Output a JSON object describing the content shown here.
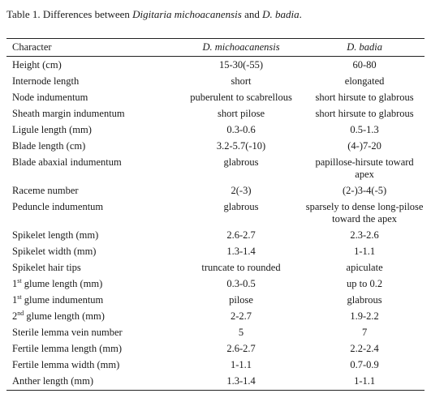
{
  "caption": {
    "prefix": "Table 1. Differences between ",
    "species1": "Digitaria michoacanensis",
    "middle": " and ",
    "species2": "D. badia",
    "suffix": "."
  },
  "headers": [
    "Character",
    "D. michoacanensis",
    "D. badia"
  ],
  "rows": [
    {
      "character": "Height (cm)",
      "sup": "",
      "rest": "",
      "michoacanensis": "15-30(-55)",
      "badia": "60-80"
    },
    {
      "character": "Internode length",
      "sup": "",
      "rest": "",
      "michoacanensis": "short",
      "badia": "elongated"
    },
    {
      "character": "Node indumentum",
      "sup": "",
      "rest": "",
      "michoacanensis": "puberulent to scabrellous",
      "badia": "short hirsute to glabrous"
    },
    {
      "character": "Sheath margin indumentum",
      "sup": "",
      "rest": "",
      "michoacanensis": "short pilose",
      "badia": "short hirsute to glabrous"
    },
    {
      "character": "Ligule length (mm)",
      "sup": "",
      "rest": "",
      "michoacanensis": "0.3-0.6",
      "badia": "0.5-1.3"
    },
    {
      "character": "Blade length (cm)",
      "sup": "",
      "rest": "",
      "michoacanensis": "3.2-5.7(-10)",
      "badia": "(4-)7-20"
    },
    {
      "character": "Blade abaxial indumentum",
      "sup": "",
      "rest": "",
      "michoacanensis": "glabrous",
      "badia": "papillose-hirsute toward apex"
    },
    {
      "character": "Raceme number",
      "sup": "",
      "rest": "",
      "michoacanensis": "2(-3)",
      "badia": "(2-)3-4(-5)"
    },
    {
      "character": "Peduncle indumentum",
      "sup": "",
      "rest": "",
      "michoacanensis": "glabrous",
      "badia": "sparsely to dense long-pilose toward the apex"
    },
    {
      "character": "Spikelet length (mm)",
      "sup": "",
      "rest": "",
      "michoacanensis": "2.6-2.7",
      "badia": "2.3-2.6"
    },
    {
      "character": "Spikelet width (mm)",
      "sup": "",
      "rest": "",
      "michoacanensis": "1.3-1.4",
      "badia": "1-1.1"
    },
    {
      "character": "Spikelet hair tips",
      "sup": "",
      "rest": "",
      "michoacanensis": "truncate to rounded",
      "badia": "apiculate"
    },
    {
      "character": "1",
      "sup": "st",
      "rest": " glume length (mm)",
      "michoacanensis": "0.3-0.5",
      "badia": "up to 0.2"
    },
    {
      "character": "1",
      "sup": "st",
      "rest": " glume indumentum",
      "michoacanensis": "pilose",
      "badia": "glabrous"
    },
    {
      "character": "2",
      "sup": "nd",
      "rest": " glume length (mm)",
      "michoacanensis": "2-2.7",
      "badia": "1.9-2.2"
    },
    {
      "character": "Sterile lemma vein number",
      "sup": "",
      "rest": "",
      "michoacanensis": "5",
      "badia": "7"
    },
    {
      "character": "Fertile lemma length (mm)",
      "sup": "",
      "rest": "",
      "michoacanensis": "2.6-2.7",
      "badia": "2.2-2.4"
    },
    {
      "character": "Fertile lemma width (mm)",
      "sup": "",
      "rest": "",
      "michoacanensis": "1-1.1",
      "badia": "0.7-0.9"
    },
    {
      "character": "Anther length (mm)",
      "sup": "",
      "rest": "",
      "michoacanensis": "1.3-1.4",
      "badia": "1-1.1"
    }
  ]
}
